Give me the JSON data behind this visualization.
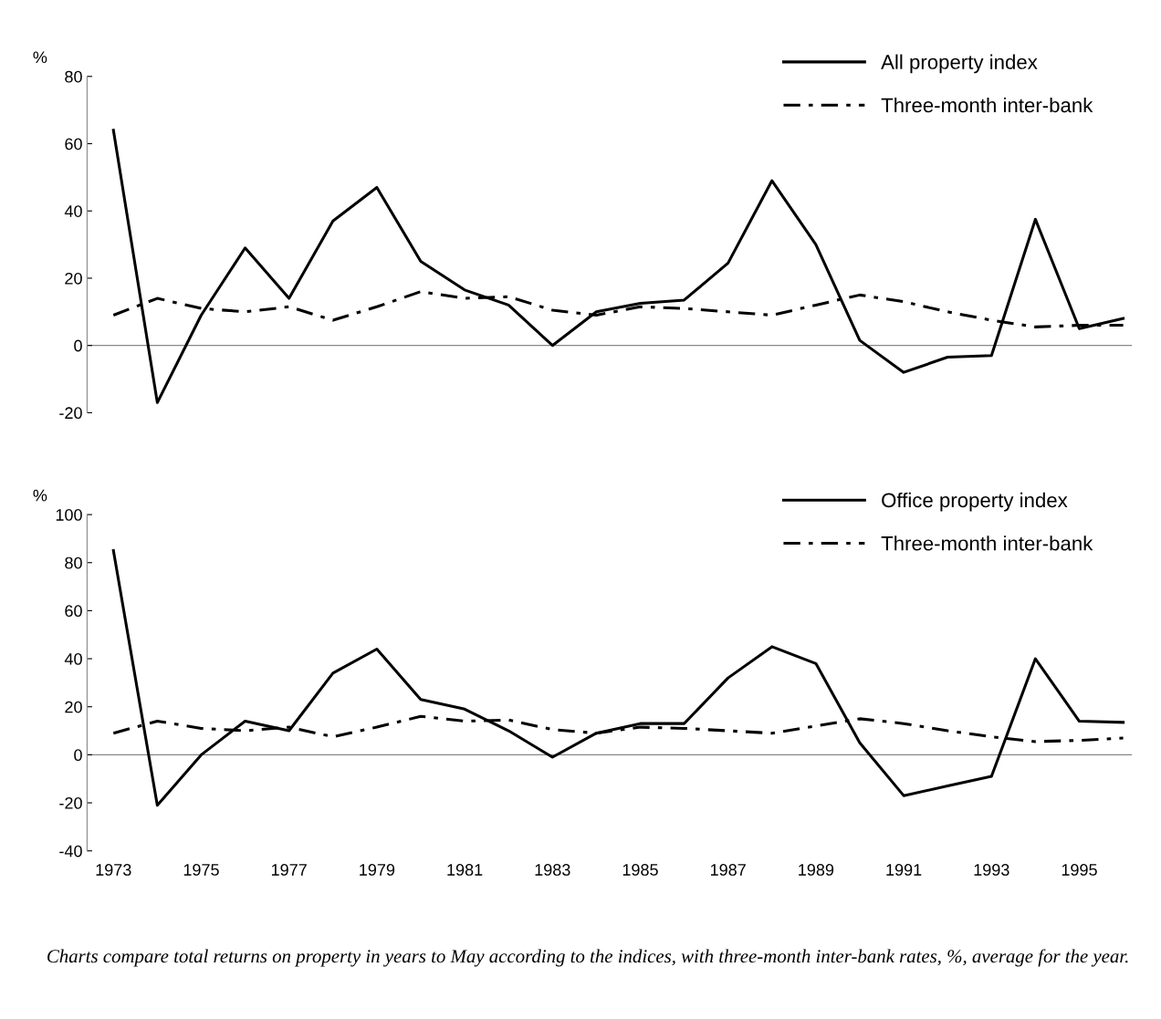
{
  "chart_data": [
    {
      "type": "line",
      "ylabel": "%",
      "x": [
        1973,
        1974,
        1975,
        1976,
        1977,
        1978,
        1979,
        1980,
        1981,
        1982,
        1983,
        1984,
        1985,
        1986,
        1987,
        1988,
        1989,
        1990,
        1991,
        1992,
        1993,
        1994,
        1995,
        1996
      ],
      "xlim": [
        1972.4,
        1996.2
      ],
      "xticks": [
        1973,
        1975,
        1977,
        1979,
        1981,
        1983,
        1985,
        1987,
        1989,
        1991,
        1993,
        1995
      ],
      "ylim": [
        -20,
        80
      ],
      "yticks": [
        -20,
        0,
        20,
        40,
        60,
        80
      ],
      "tick_labels": "y",
      "legend": "top right",
      "grid": false,
      "ref_lines": [
        {
          "axis": "y",
          "value": 0,
          "color": "#888888"
        }
      ],
      "series": [
        {
          "name": "All property index",
          "color": "#000000",
          "line_style": "solid",
          "values": [
            64,
            -17,
            9,
            29,
            14,
            37,
            47,
            25,
            16.5,
            12,
            0,
            10,
            12.5,
            13.5,
            24.5,
            49,
            30,
            1.5,
            -8,
            -3.5,
            -3,
            37.5,
            5,
            8
          ]
        },
        {
          "name": "Three-month inter-bank",
          "color": "#000000",
          "line_style": "dashdot",
          "values": [
            9,
            14,
            11,
            10,
            11.5,
            7.5,
            11.5,
            16,
            14,
            14.5,
            10.5,
            9,
            11.5,
            11,
            10,
            9,
            12,
            15,
            13,
            10,
            7.5,
            5.5,
            6,
            6
          ]
        }
      ]
    },
    {
      "type": "line",
      "ylabel": "%",
      "x": [
        1973,
        1974,
        1975,
        1976,
        1977,
        1978,
        1979,
        1980,
        1981,
        1982,
        1983,
        1984,
        1985,
        1986,
        1987,
        1988,
        1989,
        1990,
        1991,
        1992,
        1993,
        1994,
        1995,
        1996
      ],
      "xlim": [
        1972.4,
        1996.2
      ],
      "xticks": [
        1973,
        1975,
        1977,
        1979,
        1981,
        1983,
        1985,
        1987,
        1989,
        1991,
        1993,
        1995
      ],
      "ylim": [
        -40,
        100
      ],
      "yticks": [
        -40,
        -20,
        0,
        20,
        40,
        60,
        80,
        100
      ],
      "legend": "top right",
      "grid": false,
      "ref_lines": [
        {
          "axis": "y",
          "value": 0,
          "color": "#888888"
        }
      ],
      "annotations": [
        "Charts compare total returns on property in years to May according to the indices, with three-month inter-bank rates, %, average for the year."
      ],
      "series": [
        {
          "name": "Office property index",
          "color": "#000000",
          "line_style": "solid",
          "values": [
            85,
            -21,
            0,
            14,
            10,
            34,
            44,
            23,
            19,
            10,
            -1,
            9,
            13,
            13,
            32,
            45,
            38,
            5,
            -17,
            -13,
            -9,
            40,
            14,
            13.5
          ]
        },
        {
          "name": "Three-month inter-bank",
          "color": "#000000",
          "line_style": "dashdot",
          "values": [
            9,
            14,
            11,
            10,
            11.5,
            7.5,
            11.5,
            16,
            14,
            14.5,
            10.5,
            9,
            11.5,
            11,
            10,
            9,
            12,
            15,
            13,
            10,
            7.5,
            5.5,
            6,
            7
          ]
        }
      ]
    }
  ]
}
